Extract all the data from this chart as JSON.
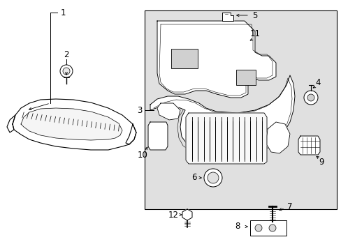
{
  "bg_color": "#ffffff",
  "box_bg": "#e8e8e8",
  "part_fill": "#ffffff",
  "part_edge": "#000000",
  "lc": "#000000",
  "lw": 0.7,
  "fig_w": 4.89,
  "fig_h": 3.6,
  "dpi": 100
}
